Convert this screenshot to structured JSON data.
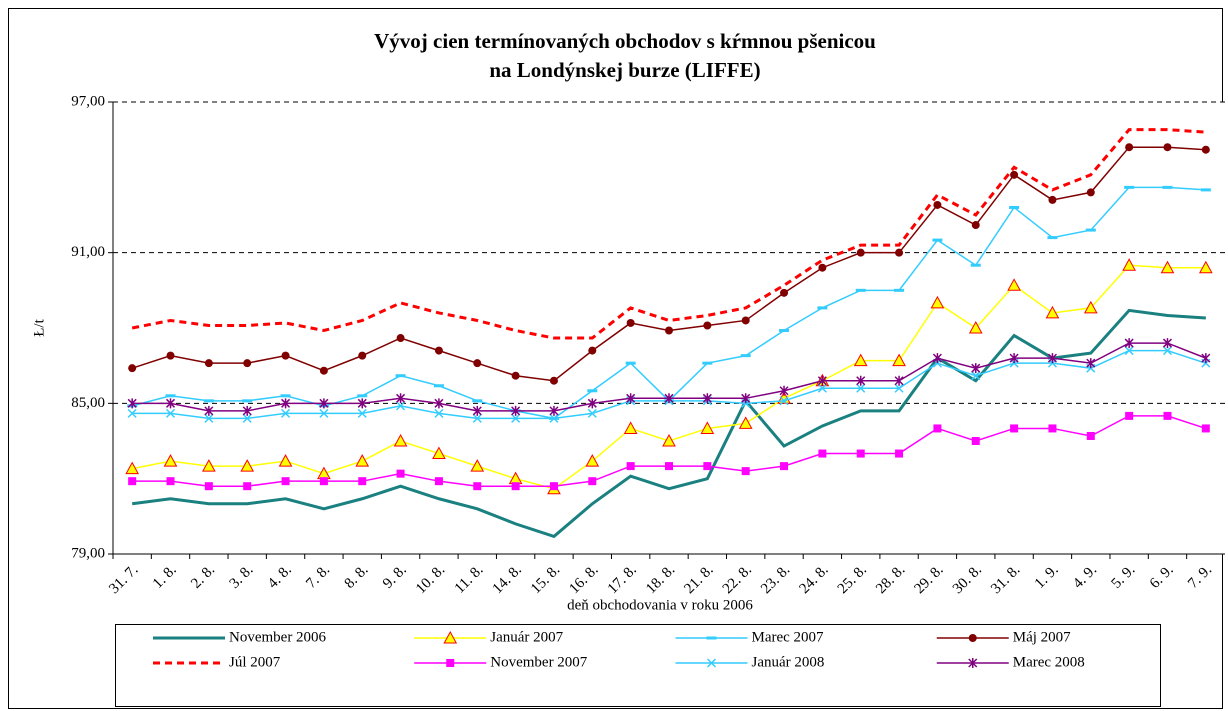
{
  "chart_data": {
    "type": "line",
    "title": [
      "Vývoj cien termínovaných obchodov s kŕmnou pšenicou",
      "na Londýnskej burze (LIFFE)"
    ],
    "x_label": "deň obchodovania v roku 2006",
    "y_label": "Ł/t",
    "categories": [
      "31. 7.",
      "1. 8.",
      "2. 8.",
      "3. 8.",
      "4. 8.",
      "7. 8.",
      "8. 8.",
      "9. 8.",
      "10. 8.",
      "11. 8.",
      "14. 8.",
      "15. 8.",
      "16. 8.",
      "17. 8.",
      "18. 8.",
      "21. 8.",
      "22. 8.",
      "23. 8.",
      "24. 8.",
      "25. 8.",
      "28. 8.",
      "29. 8.",
      "30. 8.",
      "31. 8.",
      "1. 9.",
      "4. 9.",
      "5. 9.",
      "6. 9.",
      "7. 9."
    ],
    "ylim": [
      79,
      97
    ],
    "yticks": [
      {
        "value": 79,
        "label": "79,00"
      },
      {
        "value": 85,
        "label": "85,00"
      },
      {
        "value": 91,
        "label": "91,00"
      },
      {
        "value": 97,
        "label": "97,00"
      }
    ],
    "grid": true,
    "legend": "bottom",
    "series": [
      {
        "name": "November 2006",
        "color": "#1a8080",
        "marker": "none",
        "dashed": false,
        "width": 3,
        "values": [
          81.0,
          81.2,
          81.0,
          81.0,
          81.2,
          80.8,
          81.2,
          81.7,
          81.2,
          80.8,
          80.2,
          79.7,
          81.0,
          82.1,
          81.6,
          82.0,
          85.1,
          83.3,
          84.1,
          84.7,
          84.7,
          86.8,
          85.9,
          87.7,
          86.8,
          87.0,
          88.7,
          88.5,
          88.4
        ]
      },
      {
        "name": "Január 2007",
        "color": "#ffff00",
        "marker": "triangle",
        "dashed": false,
        "width": 1.5,
        "values": [
          82.4,
          82.7,
          82.5,
          82.5,
          82.7,
          82.2,
          82.7,
          83.5,
          83.0,
          82.5,
          82.0,
          81.6,
          82.7,
          84.0,
          83.5,
          84.0,
          84.2,
          85.2,
          85.9,
          86.7,
          86.7,
          89.0,
          88.0,
          89.7,
          88.6,
          88.8,
          90.5,
          90.4,
          90.4
        ]
      },
      {
        "name": "Marec 2007",
        "color": "#33ccff",
        "marker": "dash",
        "dashed": false,
        "width": 1.5,
        "values": [
          84.9,
          85.3,
          85.1,
          85.1,
          85.3,
          84.9,
          85.3,
          86.1,
          85.7,
          85.1,
          84.7,
          84.4,
          85.5,
          86.6,
          85.1,
          86.6,
          86.9,
          87.9,
          88.8,
          89.5,
          89.5,
          91.5,
          90.5,
          92.8,
          91.6,
          91.9,
          93.6,
          93.6,
          93.5
        ]
      },
      {
        "name": "Máj 2007",
        "color": "#800000",
        "marker": "circle",
        "dashed": false,
        "width": 1.5,
        "values": [
          86.4,
          86.9,
          86.6,
          86.6,
          86.9,
          86.3,
          86.9,
          87.6,
          87.1,
          86.6,
          86.1,
          85.9,
          87.1,
          88.2,
          87.9,
          88.1,
          88.3,
          89.4,
          90.4,
          91.0,
          91.0,
          92.9,
          92.1,
          94.1,
          93.1,
          93.4,
          95.2,
          95.2,
          95.1
        ]
      },
      {
        "name": "Júl 2007",
        "color": "#ff0000",
        "marker": "none",
        "dashed": true,
        "width": 3,
        "values": [
          88.0,
          88.3,
          88.1,
          88.1,
          88.2,
          87.9,
          88.3,
          89.0,
          88.6,
          88.3,
          87.9,
          87.6,
          87.6,
          88.8,
          88.3,
          88.5,
          88.8,
          89.7,
          90.7,
          91.3,
          91.3,
          93.3,
          92.5,
          94.4,
          93.5,
          94.1,
          95.9,
          95.9,
          95.8
        ]
      },
      {
        "name": "November 2007",
        "color": "#ff00ff",
        "marker": "square",
        "dashed": false,
        "width": 1.5,
        "values": [
          81.9,
          81.9,
          81.7,
          81.7,
          81.9,
          81.9,
          81.9,
          82.2,
          81.9,
          81.7,
          81.7,
          81.7,
          81.9,
          82.5,
          82.5,
          82.5,
          82.3,
          82.5,
          83.0,
          83.0,
          83.0,
          84.0,
          83.5,
          84.0,
          84.0,
          83.7,
          84.5,
          84.5,
          84.0
        ]
      },
      {
        "name": "Január 2008",
        "color": "#33ccff",
        "marker": "x",
        "dashed": false,
        "width": 1.5,
        "values": [
          84.6,
          84.6,
          84.4,
          84.4,
          84.6,
          84.6,
          84.6,
          84.9,
          84.6,
          84.4,
          84.4,
          84.4,
          84.6,
          85.1,
          85.1,
          85.1,
          85.0,
          85.1,
          85.6,
          85.6,
          85.6,
          86.6,
          86.1,
          86.6,
          86.6,
          86.4,
          87.1,
          87.1,
          86.6
        ]
      },
      {
        "name": "Marec 2008",
        "color": "#800080",
        "marker": "star",
        "dashed": false,
        "width": 1.5,
        "values": [
          85.0,
          85.0,
          84.7,
          84.7,
          85.0,
          85.0,
          85.0,
          85.2,
          85.0,
          84.7,
          84.7,
          84.7,
          85.0,
          85.2,
          85.2,
          85.2,
          85.2,
          85.5,
          85.9,
          85.9,
          85.9,
          86.8,
          86.4,
          86.8,
          86.8,
          86.6,
          87.4,
          87.4,
          86.8
        ]
      }
    ]
  }
}
